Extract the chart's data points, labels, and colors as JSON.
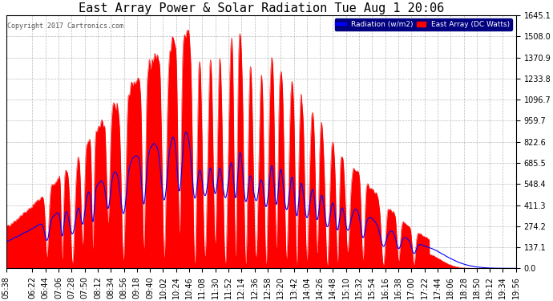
{
  "title": "East Array Power & Solar Radiation Tue Aug 1 20:06",
  "copyright": "Copyright 2017 Cartronics.com",
  "legend_radiation": "Radiation (w/m2)",
  "legend_east_array": "East Array (DC Watts)",
  "y_ticks": [
    0.0,
    137.1,
    274.2,
    411.3,
    548.4,
    685.5,
    822.6,
    959.7,
    1096.7,
    1233.8,
    1370.9,
    1508.0,
    1645.1
  ],
  "y_max": 1645.1,
  "y_min": 0.0,
  "background_color": "#ffffff",
  "plot_bg_color": "#ffffff",
  "grid_color": "#aaaaaa",
  "fill_color_east": "#ff0000",
  "line_color_radiation": "#0000ff",
  "title_fontsize": 11,
  "tick_fontsize": 7,
  "x_tick_labels": [
    "05:38",
    "06:22",
    "06:44",
    "07:06",
    "07:28",
    "07:50",
    "08:12",
    "08:34",
    "08:56",
    "09:18",
    "09:40",
    "10:02",
    "10:24",
    "10:46",
    "11:08",
    "11:30",
    "11:52",
    "12:14",
    "12:36",
    "12:58",
    "13:20",
    "13:42",
    "14:04",
    "14:26",
    "14:48",
    "15:10",
    "15:32",
    "15:54",
    "16:16",
    "16:38",
    "17:00",
    "17:22",
    "17:44",
    "18:06",
    "18:28",
    "18:50",
    "19:12",
    "19:34",
    "19:56"
  ],
  "dip_positions": [
    0.08,
    0.11,
    0.13,
    0.15,
    0.17,
    0.2,
    0.23,
    0.27,
    0.31,
    0.34,
    0.37,
    0.39,
    0.41,
    0.43,
    0.45,
    0.47,
    0.49,
    0.51,
    0.53,
    0.55,
    0.57,
    0.59,
    0.61,
    0.63,
    0.65,
    0.67,
    0.7,
    0.74,
    0.77,
    0.8
  ],
  "dip_widths": [
    0.003,
    0.002,
    0.004,
    0.003,
    0.002,
    0.003,
    0.004,
    0.003,
    0.004,
    0.003,
    0.004,
    0.005,
    0.004,
    0.005,
    0.003,
    0.004,
    0.005,
    0.004,
    0.003,
    0.004,
    0.003,
    0.004,
    0.003,
    0.004,
    0.003,
    0.004,
    0.003,
    0.004,
    0.003,
    0.003
  ],
  "dip_depths": [
    0.85,
    0.9,
    0.95,
    0.8,
    0.85,
    0.7,
    0.95,
    0.9,
    0.95,
    0.85,
    0.98,
    0.95,
    0.9,
    0.98,
    0.95,
    0.98,
    0.95,
    0.98,
    0.9,
    0.95,
    0.98,
    0.95,
    0.9,
    0.98,
    0.95,
    0.85,
    0.9,
    0.95,
    0.85,
    0.9
  ]
}
